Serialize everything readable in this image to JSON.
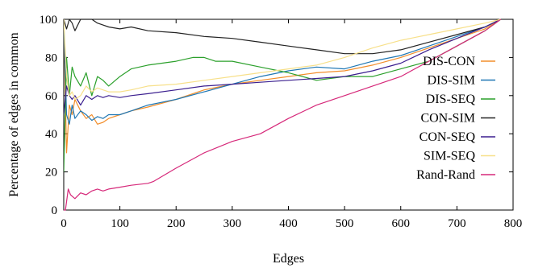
{
  "chart_data": {
    "type": "line",
    "title": "",
    "xlabel": "Edges",
    "ylabel": "Percentage of edges in common",
    "xlim": [
      0,
      800
    ],
    "ylim": [
      0,
      100
    ],
    "xticks": [
      0,
      100,
      200,
      300,
      400,
      500,
      600,
      700,
      800
    ],
    "yticks": [
      0,
      20,
      40,
      60,
      80,
      100
    ],
    "grid": false,
    "legend_position": "right",
    "series": [
      {
        "name": "DIS-CON",
        "color": "#f28e2b",
        "x": [
          0,
          5,
          10,
          15,
          20,
          30,
          40,
          50,
          60,
          70,
          80,
          100,
          120,
          150,
          200,
          250,
          300,
          350,
          400,
          450,
          500,
          550,
          600,
          650,
          700,
          750,
          778
        ],
        "y": [
          100,
          30,
          55,
          50,
          58,
          52,
          48,
          50,
          45,
          46,
          48,
          50,
          52,
          54,
          58,
          63,
          66,
          68,
          70,
          72,
          73,
          76,
          80,
          85,
          90,
          95,
          100
        ]
      },
      {
        "name": "DIS-SIM",
        "color": "#1f77b4",
        "x": [
          0,
          5,
          10,
          15,
          20,
          30,
          40,
          50,
          60,
          70,
          80,
          100,
          120,
          150,
          200,
          250,
          300,
          350,
          400,
          450,
          500,
          550,
          600,
          650,
          700,
          750,
          778
        ],
        "y": [
          100,
          50,
          45,
          55,
          48,
          52,
          50,
          47,
          49,
          48,
          50,
          50,
          52,
          55,
          58,
          62,
          66,
          70,
          73,
          75,
          74,
          78,
          81,
          86,
          91,
          96,
          100
        ]
      },
      {
        "name": "DIS-SEQ",
        "color": "#2ca02c",
        "x": [
          0,
          5,
          10,
          15,
          20,
          30,
          40,
          50,
          60,
          70,
          80,
          100,
          120,
          150,
          200,
          230,
          250,
          270,
          300,
          350,
          400,
          450,
          500,
          550,
          600,
          650,
          700,
          750,
          778
        ],
        "y": [
          20,
          80,
          60,
          75,
          70,
          65,
          72,
          60,
          70,
          68,
          65,
          70,
          74,
          76,
          78,
          80,
          80,
          78,
          78,
          75,
          72,
          68,
          70,
          70,
          74,
          78,
          86,
          94,
          100
        ]
      },
      {
        "name": "CON-SIM",
        "color": "#222222",
        "x": [
          0,
          5,
          10,
          15,
          20,
          30,
          40,
          50,
          60,
          70,
          80,
          100,
          120,
          150,
          200,
          250,
          300,
          350,
          400,
          450,
          500,
          550,
          600,
          650,
          700,
          750,
          778
        ],
        "y": [
          100,
          95,
          100,
          98,
          94,
          100,
          100,
          100,
          98,
          97,
          96,
          95,
          96,
          94,
          93,
          91,
          90,
          88,
          86,
          84,
          82,
          82,
          84,
          88,
          92,
          96,
          100
        ]
      },
      {
        "name": "CON-SEQ",
        "color": "#3b1f8f",
        "x": [
          0,
          5,
          10,
          15,
          20,
          30,
          40,
          50,
          60,
          70,
          80,
          100,
          120,
          150,
          200,
          250,
          300,
          350,
          400,
          450,
          500,
          550,
          600,
          650,
          700,
          750,
          778
        ],
        "y": [
          50,
          65,
          60,
          58,
          60,
          55,
          60,
          58,
          60,
          59,
          60,
          59,
          60,
          61,
          63,
          65,
          66,
          67,
          68,
          69,
          70,
          73,
          77,
          84,
          90,
          96,
          100
        ]
      },
      {
        "name": "SIM-SEQ",
        "color": "#f7e08a",
        "x": [
          0,
          5,
          10,
          15,
          20,
          30,
          40,
          50,
          60,
          70,
          80,
          100,
          120,
          150,
          200,
          250,
          300,
          350,
          400,
          450,
          500,
          550,
          600,
          650,
          700,
          750,
          778
        ],
        "y": [
          100,
          70,
          60,
          62,
          58,
          60,
          65,
          62,
          64,
          63,
          62,
          62,
          63,
          65,
          66,
          68,
          70,
          72,
          74,
          76,
          80,
          85,
          89,
          92,
          95,
          98,
          100
        ]
      },
      {
        "name": "Rand-Rand",
        "color": "#d6297a",
        "x": [
          0,
          3,
          8,
          12,
          20,
          30,
          40,
          50,
          60,
          70,
          80,
          100,
          120,
          150,
          160,
          200,
          250,
          300,
          350,
          400,
          450,
          500,
          550,
          600,
          650,
          700,
          750,
          778
        ],
        "y": [
          0,
          0,
          11,
          8,
          6,
          9,
          8,
          10,
          11,
          10,
          11,
          12,
          13,
          14,
          15,
          22,
          30,
          36,
          40,
          48,
          55,
          60,
          65,
          70,
          78,
          86,
          94,
          100
        ]
      }
    ]
  }
}
